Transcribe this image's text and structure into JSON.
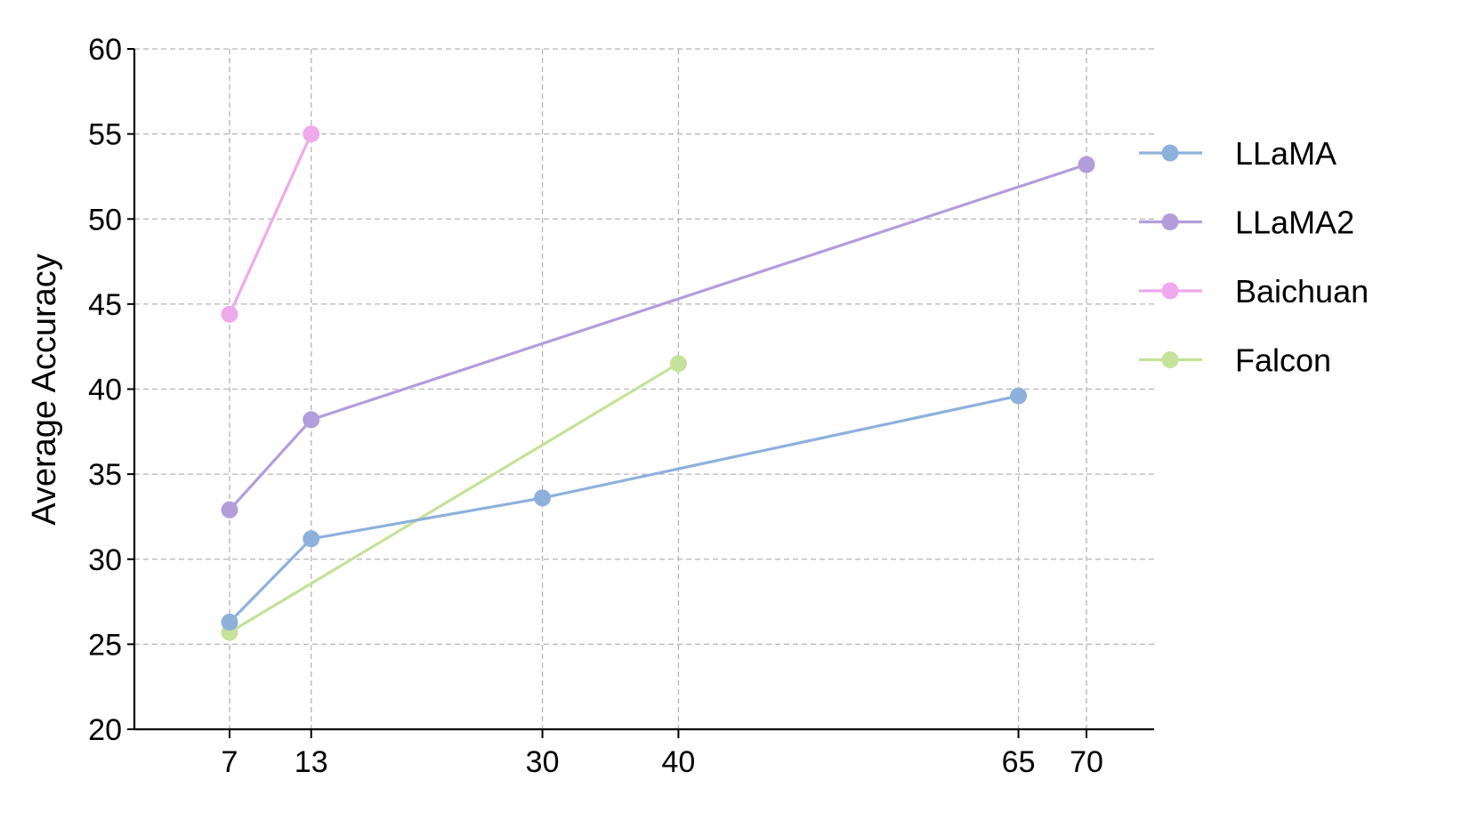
{
  "chart_data": {
    "type": "line",
    "title": "",
    "xlabel": "",
    "ylabel": "Average Accuracy",
    "xlim": [
      0,
      75
    ],
    "ylim": [
      20,
      60
    ],
    "x_ticks": [
      7,
      13,
      30,
      40,
      65,
      70
    ],
    "y_ticks": [
      20,
      25,
      30,
      35,
      40,
      45,
      50,
      55,
      60
    ],
    "grid": true,
    "legend_position": "right",
    "series": [
      {
        "name": "LLaMA",
        "color": "#8eb1dc",
        "x": [
          7,
          13,
          30,
          65
        ],
        "values": [
          26.3,
          31.2,
          33.6,
          39.6
        ]
      },
      {
        "name": "LLaMA2",
        "color": "#b39ddb",
        "x": [
          7,
          13,
          70
        ],
        "values": [
          32.9,
          38.2,
          53.2
        ]
      },
      {
        "name": "Baichuan",
        "color": "#eeaaec",
        "x": [
          7,
          13
        ],
        "values": [
          44.4,
          55.0
        ]
      },
      {
        "name": "Falcon",
        "color": "#c5e19a",
        "x": [
          7,
          40
        ],
        "values": [
          25.7,
          41.5
        ]
      }
    ]
  }
}
